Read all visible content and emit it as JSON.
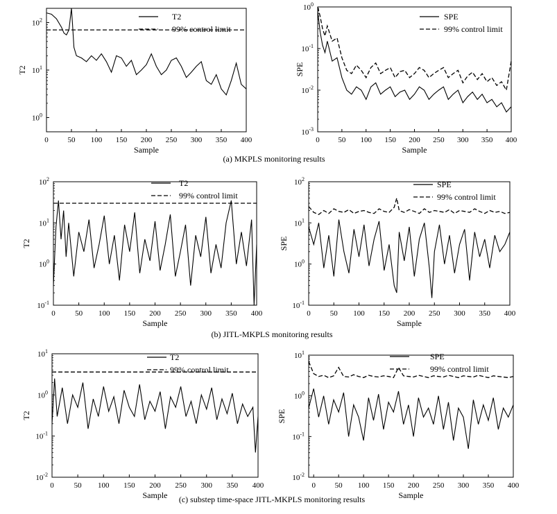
{
  "captions": [
    "(a) MKPLS monitoring results",
    "(b) JITL-MKPLS monitoring results",
    "(c) substep time-space JITL-MKPLS monitoring results"
  ],
  "chart_data": [
    {
      "type": "line",
      "panel": "a-left",
      "xlabel": "Sample",
      "ylabel": "T2",
      "xlim": [
        0,
        400
      ],
      "ylim_log10": [
        -0.3,
        2.3
      ],
      "yscale": "log",
      "xticks": [
        "0",
        "50",
        "100",
        "150",
        "200",
        "250",
        "300",
        "350",
        "400"
      ],
      "yticks": [
        {
          "exp": 0,
          "base": "10",
          "sup": "0"
        },
        {
          "exp": 1,
          "base": "10",
          "sup": "1"
        },
        {
          "exp": 2,
          "base": "10",
          "sup": "2"
        }
      ],
      "series": [
        {
          "name": "T2",
          "style": "solid",
          "x": [
            0,
            10,
            20,
            30,
            35,
            40,
            45,
            50,
            52,
            55,
            60,
            70,
            80,
            90,
            100,
            110,
            120,
            130,
            140,
            150,
            160,
            170,
            180,
            190,
            200,
            210,
            220,
            230,
            240,
            250,
            260,
            270,
            280,
            290,
            300,
            310,
            320,
            330,
            340,
            350,
            360,
            370,
            380,
            390,
            400
          ],
          "y": [
            160,
            150,
            120,
            80,
            60,
            55,
            70,
            200,
            100,
            30,
            20,
            18,
            15,
            20,
            16,
            22,
            15,
            9,
            20,
            18,
            12,
            16,
            8,
            10,
            13,
            22,
            12,
            8,
            10,
            16,
            18,
            12,
            7,
            9,
            12,
            15,
            6,
            5,
            8,
            4,
            3,
            6,
            14,
            5,
            4
          ]
        },
        {
          "name": "99% control limit",
          "style": "dashed",
          "x": [
            0,
            400
          ],
          "y": [
            70,
            70
          ]
        }
      ],
      "legend_position": "top-right"
    },
    {
      "type": "line",
      "panel": "a-right",
      "xlabel": "Sample",
      "ylabel": "SPE",
      "xlim": [
        0,
        400
      ],
      "ylim_log10": [
        -3,
        0
      ],
      "yscale": "log",
      "xticks": [
        "0",
        "50",
        "100",
        "150",
        "200",
        "250",
        "300",
        "350",
        "400"
      ],
      "yticks": [
        {
          "exp": -3,
          "base": "10",
          "sup": "-3"
        },
        {
          "exp": -2,
          "base": "10",
          "sup": "-2"
        },
        {
          "exp": -1,
          "base": "10",
          "sup": "-1"
        },
        {
          "exp": 0,
          "base": "10",
          "sup": "0"
        }
      ],
      "series": [
        {
          "name": "SPE",
          "style": "solid",
          "x": [
            0,
            5,
            10,
            15,
            20,
            30,
            40,
            50,
            60,
            70,
            80,
            90,
            100,
            110,
            120,
            130,
            140,
            150,
            160,
            170,
            180,
            190,
            200,
            210,
            220,
            230,
            240,
            250,
            260,
            270,
            280,
            290,
            300,
            310,
            320,
            330,
            340,
            350,
            360,
            370,
            380,
            390,
            400
          ],
          "y": [
            0.8,
            0.25,
            0.12,
            0.08,
            0.15,
            0.05,
            0.06,
            0.02,
            0.01,
            0.008,
            0.012,
            0.01,
            0.006,
            0.012,
            0.015,
            0.008,
            0.01,
            0.012,
            0.007,
            0.009,
            0.01,
            0.006,
            0.008,
            0.012,
            0.01,
            0.006,
            0.008,
            0.01,
            0.012,
            0.006,
            0.008,
            0.01,
            0.005,
            0.007,
            0.009,
            0.006,
            0.008,
            0.005,
            0.006,
            0.004,
            0.005,
            0.003,
            0.004
          ]
        },
        {
          "name": "99% control limit",
          "style": "dashed",
          "x": [
            0,
            5,
            10,
            15,
            20,
            30,
            40,
            50,
            60,
            70,
            80,
            90,
            100,
            110,
            120,
            130,
            140,
            150,
            160,
            170,
            180,
            190,
            200,
            210,
            220,
            230,
            240,
            250,
            260,
            270,
            280,
            290,
            300,
            310,
            320,
            330,
            340,
            350,
            360,
            370,
            380,
            390,
            400
          ],
          "y": [
            1.5,
            0.6,
            0.3,
            0.2,
            0.35,
            0.15,
            0.18,
            0.06,
            0.03,
            0.025,
            0.04,
            0.03,
            0.02,
            0.035,
            0.045,
            0.025,
            0.03,
            0.035,
            0.02,
            0.028,
            0.03,
            0.02,
            0.025,
            0.035,
            0.03,
            0.02,
            0.025,
            0.03,
            0.035,
            0.02,
            0.025,
            0.03,
            0.015,
            0.022,
            0.027,
            0.018,
            0.025,
            0.016,
            0.02,
            0.013,
            0.016,
            0.01,
            0.05
          ]
        }
      ],
      "legend_position": "top-right"
    },
    {
      "type": "line",
      "panel": "b-left",
      "xlabel": "Sample",
      "ylabel": "T2",
      "xlim": [
        0,
        400
      ],
      "ylim_log10": [
        -1,
        2
      ],
      "yscale": "log",
      "xticks": [
        "0",
        "50",
        "100",
        "150",
        "200",
        "250",
        "300",
        "350",
        "400"
      ],
      "yticks": [
        {
          "exp": -1,
          "base": "10",
          "sup": "-1"
        },
        {
          "exp": 0,
          "base": "10",
          "sup": "0"
        },
        {
          "exp": 1,
          "base": "10",
          "sup": "1"
        },
        {
          "exp": 2,
          "base": "10",
          "sup": "2"
        }
      ],
      "series": [
        {
          "name": "T2",
          "style": "solid",
          "x": [
            0,
            5,
            10,
            15,
            20,
            25,
            30,
            40,
            50,
            60,
            70,
            80,
            90,
            100,
            110,
            120,
            130,
            140,
            150,
            160,
            170,
            180,
            190,
            200,
            210,
            220,
            230,
            240,
            250,
            260,
            270,
            280,
            290,
            300,
            310,
            320,
            330,
            340,
            350,
            360,
            370,
            380,
            390,
            395,
            400
          ],
          "y": [
            0.3,
            8,
            35,
            4,
            20,
            1.5,
            10,
            0.5,
            6,
            2,
            12,
            0.8,
            3,
            15,
            1,
            5,
            0.4,
            9,
            2,
            18,
            0.6,
            4,
            1.2,
            11,
            0.7,
            3,
            16,
            0.5,
            2,
            9,
            0.3,
            5,
            1.5,
            14,
            0.6,
            3,
            0.8,
            10,
            35,
            1,
            6,
            0.9,
            12,
            0.1,
            3
          ]
        },
        {
          "name": "99% control limit",
          "style": "dashed",
          "x": [
            0,
            400
          ],
          "y": [
            30,
            30
          ]
        }
      ],
      "legend_position": "top-right"
    },
    {
      "type": "line",
      "panel": "b-right",
      "xlabel": "Sample",
      "ylabel": "SPE",
      "xlim": [
        0,
        400
      ],
      "ylim_log10": [
        -1,
        2
      ],
      "yscale": "log",
      "xticks": [
        "0",
        "50",
        "100",
        "150",
        "200",
        "250",
        "300",
        "350",
        "400"
      ],
      "yticks": [
        {
          "exp": -1,
          "base": "10",
          "sup": "-1"
        },
        {
          "exp": 0,
          "base": "10",
          "sup": "0"
        },
        {
          "exp": 1,
          "base": "10",
          "sup": "1"
        },
        {
          "exp": 2,
          "base": "10",
          "sup": "2"
        }
      ],
      "series": [
        {
          "name": "SPE",
          "style": "solid",
          "x": [
            0,
            10,
            20,
            30,
            40,
            50,
            60,
            70,
            80,
            90,
            100,
            110,
            120,
            130,
            140,
            150,
            160,
            170,
            175,
            180,
            190,
            200,
            210,
            220,
            230,
            240,
            245,
            250,
            260,
            270,
            280,
            290,
            300,
            310,
            320,
            330,
            340,
            350,
            360,
            370,
            380,
            390,
            400
          ],
          "y": [
            8,
            3,
            10,
            0.8,
            5,
            0.5,
            12,
            2,
            0.6,
            7,
            1.5,
            9,
            0.9,
            4,
            11,
            0.7,
            3,
            0.3,
            0.2,
            6,
            1.2,
            8,
            0.5,
            4,
            10,
            0.8,
            0.15,
            2,
            9,
            1,
            5,
            0.6,
            3,
            7,
            0.4,
            6,
            1.5,
            4,
            0.8,
            5,
            2,
            3,
            6
          ]
        },
        {
          "name": "99% control limit",
          "style": "dashed",
          "x": [
            0,
            10,
            20,
            30,
            40,
            50,
            60,
            70,
            80,
            90,
            100,
            110,
            120,
            130,
            140,
            150,
            160,
            170,
            175,
            180,
            190,
            200,
            210,
            220,
            230,
            240,
            250,
            260,
            270,
            280,
            290,
            300,
            310,
            320,
            330,
            340,
            350,
            360,
            370,
            380,
            390,
            400
          ],
          "y": [
            25,
            18,
            16,
            20,
            17,
            22,
            19,
            18,
            21,
            17,
            19,
            20,
            18,
            17,
            22,
            19,
            18,
            24,
            40,
            20,
            18,
            21,
            19,
            17,
            22,
            18,
            20,
            19,
            18,
            21,
            17,
            20,
            19,
            18,
            22,
            19,
            17,
            20,
            18,
            19,
            17,
            18
          ]
        }
      ],
      "legend_position": "top-right"
    },
    {
      "type": "line",
      "panel": "c-left",
      "xlabel": "Sample",
      "ylabel": "T2",
      "xlim": [
        0,
        400
      ],
      "ylim_log10": [
        -2,
        1
      ],
      "yscale": "log",
      "xticks": [
        "0",
        "50",
        "100",
        "150",
        "200",
        "250",
        "300",
        "350",
        "400"
      ],
      "yticks": [
        {
          "exp": -2,
          "base": "10",
          "sup": "-2"
        },
        {
          "exp": -1,
          "base": "10",
          "sup": "-1"
        },
        {
          "exp": 0,
          "base": "10",
          "sup": "0"
        },
        {
          "exp": 1,
          "base": "10",
          "sup": "1"
        }
      ],
      "series": [
        {
          "name": "T2",
          "style": "solid",
          "x": [
            0,
            5,
            10,
            20,
            30,
            40,
            50,
            60,
            70,
            80,
            90,
            100,
            110,
            120,
            130,
            140,
            150,
            160,
            170,
            180,
            190,
            200,
            210,
            220,
            230,
            240,
            250,
            260,
            270,
            280,
            290,
            300,
            310,
            320,
            330,
            340,
            350,
            360,
            370,
            380,
            390,
            395,
            400
          ],
          "y": [
            0.2,
            2.5,
            0.3,
            1.5,
            0.2,
            1,
            0.5,
            2,
            0.15,
            0.8,
            0.3,
            1.6,
            0.4,
            0.9,
            0.2,
            1.3,
            0.5,
            0.3,
            1.8,
            0.25,
            0.7,
            0.4,
            1.2,
            0.15,
            0.9,
            0.5,
            1.6,
            0.3,
            0.7,
            0.2,
            1,
            0.45,
            1.5,
            0.25,
            0.8,
            0.35,
            1.1,
            0.2,
            0.6,
            0.3,
            0.5,
            0.04,
            0.3
          ]
        },
        {
          "name": "99% control limit",
          "style": "dashed",
          "x": [
            0,
            400
          ],
          "y": [
            3.6,
            3.6
          ]
        }
      ],
      "legend_position": "top-right"
    },
    {
      "type": "line",
      "panel": "c-right",
      "xlabel": "Sample",
      "ylabel": "SPE",
      "xlim": [
        -10,
        400
      ],
      "ylim_log10": [
        -2,
        1
      ],
      "yscale": "log",
      "xticks": [
        "0",
        "50",
        "100",
        "150",
        "200",
        "250",
        "300",
        "350",
        "400"
      ],
      "yticks": [
        {
          "exp": -2,
          "base": "10",
          "sup": "-2"
        },
        {
          "exp": -1,
          "base": "10",
          "sup": "-1"
        },
        {
          "exp": 0,
          "base": "10",
          "sup": "0"
        },
        {
          "exp": 1,
          "base": "10",
          "sup": "1"
        }
      ],
      "series": [
        {
          "name": "SPE",
          "style": "solid",
          "x": [
            -10,
            0,
            10,
            20,
            30,
            40,
            50,
            60,
            70,
            80,
            90,
            100,
            110,
            120,
            130,
            140,
            150,
            160,
            170,
            180,
            190,
            200,
            210,
            220,
            230,
            240,
            250,
            260,
            270,
            280,
            290,
            300,
            310,
            320,
            330,
            340,
            350,
            360,
            370,
            380,
            390,
            400
          ],
          "y": [
            0.5,
            1.5,
            0.3,
            1,
            0.2,
            0.8,
            0.4,
            1.2,
            0.1,
            0.6,
            0.3,
            0.08,
            0.9,
            0.25,
            1.1,
            0.15,
            0.7,
            0.4,
            1.3,
            0.2,
            0.6,
            0.1,
            0.9,
            0.3,
            0.5,
            0.2,
            1,
            0.15,
            0.7,
            0.08,
            0.5,
            0.3,
            0.05,
            0.8,
            0.2,
            0.6,
            0.25,
            0.9,
            0.15,
            0.5,
            0.3,
            0.6
          ]
        },
        {
          "name": "99% control limit",
          "style": "dashed",
          "x": [
            -10,
            0,
            10,
            20,
            30,
            40,
            50,
            60,
            70,
            80,
            90,
            100,
            110,
            120,
            130,
            140,
            150,
            160,
            170,
            180,
            190,
            200,
            210,
            220,
            230,
            240,
            250,
            260,
            270,
            280,
            290,
            300,
            310,
            320,
            330,
            340,
            350,
            360,
            370,
            380,
            390,
            400
          ],
          "y": [
            7,
            3.5,
            3,
            3.2,
            2.8,
            3.1,
            5,
            3,
            2.9,
            3.3,
            3,
            2.8,
            3.2,
            3,
            2.9,
            3.1,
            3,
            2.8,
            5,
            3.1,
            3,
            2.9,
            3.2,
            3,
            2.8,
            3.1,
            3,
            2.9,
            3.2,
            3,
            2.8,
            3.1,
            3,
            2.9,
            3.2,
            3,
            2.8,
            3.1,
            3,
            2.9,
            2.8,
            3
          ]
        }
      ],
      "legend_position": "top-right"
    }
  ]
}
